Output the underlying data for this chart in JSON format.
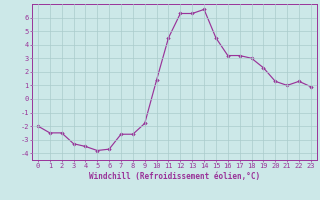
{
  "x": [
    0,
    1,
    2,
    3,
    4,
    5,
    6,
    7,
    8,
    9,
    10,
    11,
    12,
    13,
    14,
    15,
    16,
    17,
    18,
    19,
    20,
    21,
    22,
    23
  ],
  "y": [
    -2.0,
    -2.5,
    -2.5,
    -3.3,
    -3.5,
    -3.8,
    -3.7,
    -2.6,
    -2.6,
    -1.8,
    1.4,
    4.5,
    6.3,
    6.3,
    6.6,
    4.5,
    3.2,
    3.2,
    3.0,
    2.3,
    1.3,
    1.0,
    1.3,
    0.9
  ],
  "line_color": "#993399",
  "marker": "D",
  "marker_size": 1.8,
  "bg_color": "#cce8e8",
  "grid_color": "#aacccc",
  "xlabel": "Windchill (Refroidissement éolien,°C)",
  "ylim": [
    -4.5,
    7.0
  ],
  "xlim": [
    -0.5,
    23.5
  ],
  "xticks": [
    0,
    1,
    2,
    3,
    4,
    5,
    6,
    7,
    8,
    9,
    10,
    11,
    12,
    13,
    14,
    15,
    16,
    17,
    18,
    19,
    20,
    21,
    22,
    23
  ],
  "yticks": [
    -4,
    -3,
    -2,
    -1,
    0,
    1,
    2,
    3,
    4,
    5,
    6
  ],
  "tick_color": "#993399",
  "label_fontsize": 5.5,
  "tick_fontsize": 5.0,
  "spine_color": "#993399"
}
